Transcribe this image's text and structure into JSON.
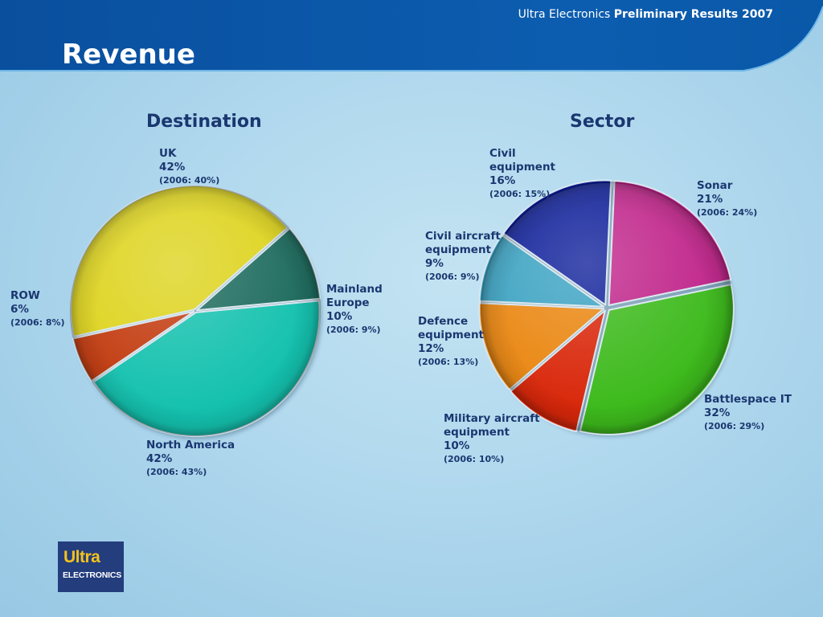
{
  "header": {
    "brand": "Ultra Electronics",
    "report": "Preliminary Results 2007",
    "title": "Revenue"
  },
  "logo": {
    "line1": "Ultra",
    "line2": "ELECTRONICS"
  },
  "colors": {
    "header_blue": "#0b59a8",
    "title_text": "#1a3770"
  },
  "chart_data": [
    {
      "type": "pie",
      "title": "Destination",
      "slices": [
        {
          "name": "UK",
          "value": 42,
          "pct_label": "42%",
          "prev_label": "(2006: 40%)",
          "color": "#ddd31b"
        },
        {
          "name": "Mainland Europe",
          "label_lines": [
            "Mainland",
            "Europe"
          ],
          "value": 10,
          "pct_label": "10%",
          "prev_label": "(2006: 9%)",
          "color": "#1b6a5c"
        },
        {
          "name": "North America",
          "value": 42,
          "pct_label": "42%",
          "prev_label": "(2006: 43%)",
          "color": "#14c1ae"
        },
        {
          "name": "ROW",
          "value": 6,
          "pct_label": "6%",
          "prev_label": "(2006: 8%)",
          "color": "#c23a0e"
        }
      ]
    },
    {
      "type": "pie",
      "title": "Sector",
      "slices": [
        {
          "name": "Sonar",
          "value": 21,
          "pct_label": "21%",
          "prev_label": "(2006: 24%)",
          "color": "#c0248a"
        },
        {
          "name": "Battlespace IT",
          "value": 32,
          "pct_label": "32%",
          "prev_label": "(2006: 29%)",
          "color": "#3dba1c"
        },
        {
          "name": "Military aircraft equipment",
          "label_lines": [
            "Military aircraft",
            "equipment"
          ],
          "value": 10,
          "pct_label": "10%",
          "prev_label": "(2006: 10%)",
          "color": "#d9270a"
        },
        {
          "name": "Defence equipment",
          "label_lines": [
            "Defence",
            "equipment"
          ],
          "value": 12,
          "pct_label": "12%",
          "prev_label": "(2006: 13%)",
          "color": "#ea8610"
        },
        {
          "name": "Civil aircraft equipment",
          "label_lines": [
            "Civil aircraft",
            "equipment"
          ],
          "value": 9,
          "pct_label": "9%",
          "prev_label": "(2006: 9%)",
          "color": "#3aa2c2"
        },
        {
          "name": "Civil equipment",
          "label_lines": [
            "Civil",
            "equipment"
          ],
          "value": 16,
          "pct_label": "16%",
          "prev_label": "(2006: 15%)",
          "color": "#0e1f9a"
        }
      ]
    }
  ]
}
